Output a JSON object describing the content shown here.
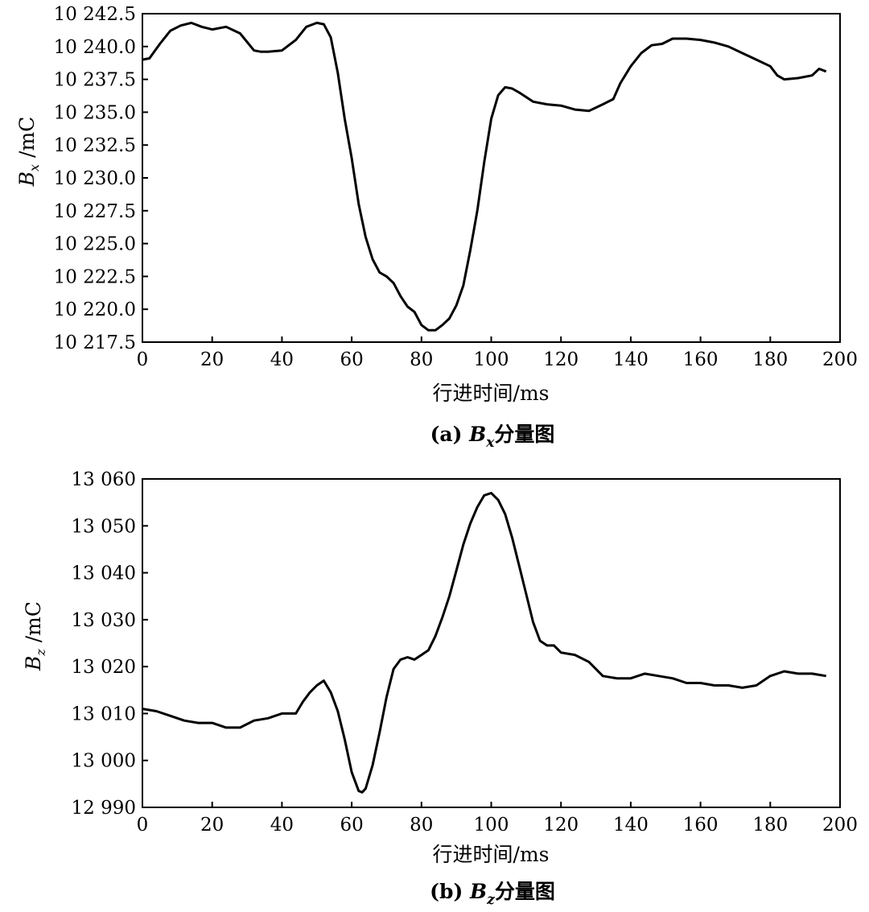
{
  "chart_data": [
    {
      "type": "line",
      "caption_prefix": "(a) ",
      "caption_var": "B",
      "caption_sub": "x",
      "caption_suffix": "分量图",
      "xlabel": "行进时间/ms",
      "ylabel_var": "B",
      "ylabel_sub": "x",
      "ylabel_unit": " /mC",
      "xlim": [
        0,
        200
      ],
      "ylim": [
        10217.5,
        10242.5
      ],
      "xticks": [
        0,
        20,
        40,
        60,
        80,
        100,
        120,
        140,
        160,
        180,
        200
      ],
      "yticks": [
        10217.5,
        10220.0,
        10222.5,
        10225.0,
        10227.5,
        10230.0,
        10232.5,
        10235.0,
        10237.5,
        10240.0,
        10242.5
      ],
      "xtick_labels": [
        "0",
        "20",
        "40",
        "60",
        "80",
        "100",
        "120",
        "140",
        "160",
        "180",
        "200"
      ],
      "ytick_labels": [
        "10 217.5",
        "10 220.0",
        "10 222.5",
        "10 225.0",
        "10 227.5",
        "10 230.0",
        "10 232.5",
        "10 235.0",
        "10 237.5",
        "10 240.0",
        "10 242.5"
      ],
      "grid": false,
      "line_color": "#000000",
      "series": [
        {
          "x": [
            0,
            2,
            5,
            8,
            11,
            14,
            17,
            20,
            24,
            28,
            32,
            34,
            36,
            40,
            44,
            47,
            50,
            52,
            54,
            56,
            58,
            60,
            62,
            64,
            66,
            68,
            70,
            72,
            74,
            76,
            78,
            80,
            82,
            84,
            86,
            88,
            90,
            92,
            94,
            96,
            98,
            100,
            102,
            104,
            106,
            108,
            112,
            116,
            120,
            124,
            128,
            132,
            135,
            137,
            140,
            143,
            146,
            149,
            152,
            156,
            160,
            164,
            168,
            172,
            176,
            180,
            182,
            184,
            188,
            192,
            194,
            196
          ],
          "y": [
            10239.0,
            10239.1,
            10240.2,
            10241.2,
            10241.6,
            10241.8,
            10241.5,
            10241.3,
            10241.5,
            10241.0,
            10239.7,
            10239.6,
            10239.6,
            10239.7,
            10240.5,
            10241.5,
            10241.8,
            10241.7,
            10240.7,
            10238.0,
            10234.5,
            10231.5,
            10228.0,
            10225.5,
            10223.8,
            10222.8,
            10222.5,
            10222.0,
            10221.0,
            10220.2,
            10219.8,
            10218.8,
            10218.4,
            10218.4,
            10218.8,
            10219.3,
            10220.3,
            10221.8,
            10224.5,
            10227.5,
            10231.2,
            10234.5,
            10236.3,
            10236.9,
            10236.8,
            10236.5,
            10235.8,
            10235.6,
            10235.5,
            10235.2,
            10235.1,
            10235.6,
            10236.0,
            10237.2,
            10238.5,
            10239.5,
            10240.1,
            10240.2,
            10240.6,
            10240.6,
            10240.5,
            10240.3,
            10240.0,
            10239.5,
            10239.0,
            10238.5,
            10237.8,
            10237.5,
            10237.6,
            10237.8,
            10238.3,
            10238.1
          ]
        }
      ]
    },
    {
      "type": "line",
      "caption_prefix": "(b) ",
      "caption_var": "B",
      "caption_sub": "z",
      "caption_suffix": "分量图",
      "xlabel": "行进时间/ms",
      "ylabel_var": "B",
      "ylabel_sub": "z",
      "ylabel_unit": " /mC",
      "xlim": [
        0,
        200
      ],
      "ylim": [
        12990,
        13060
      ],
      "xticks": [
        0,
        20,
        40,
        60,
        80,
        100,
        120,
        140,
        160,
        180,
        200
      ],
      "yticks": [
        12990,
        13000,
        13010,
        13020,
        13030,
        13040,
        13050,
        13060
      ],
      "xtick_labels": [
        "0",
        "20",
        "40",
        "60",
        "80",
        "100",
        "120",
        "140",
        "160",
        "180",
        "200"
      ],
      "ytick_labels": [
        "12 990",
        "13 000",
        "13 010",
        "13 020",
        "13 030",
        "13 040",
        "13 050",
        "13 060"
      ],
      "grid": false,
      "line_color": "#000000",
      "series": [
        {
          "x": [
            0,
            4,
            8,
            12,
            16,
            20,
            24,
            28,
            32,
            36,
            40,
            44,
            46,
            48,
            50,
            52,
            54,
            56,
            58,
            60,
            62,
            63,
            64,
            66,
            68,
            70,
            72,
            74,
            76,
            78,
            80,
            82,
            84,
            86,
            88,
            90,
            92,
            94,
            96,
            98,
            100,
            102,
            104,
            106,
            108,
            110,
            112,
            114,
            116,
            118,
            120,
            124,
            128,
            132,
            136,
            140,
            144,
            148,
            152,
            156,
            160,
            164,
            168,
            172,
            176,
            180,
            184,
            188,
            192,
            196
          ],
          "y": [
            13011.0,
            13010.5,
            13009.5,
            13008.5,
            13008.0,
            13008.0,
            13007.0,
            13007.0,
            13008.5,
            13009.0,
            13010.0,
            13010.0,
            13012.5,
            13014.5,
            13016.0,
            13017.0,
            13014.5,
            13010.5,
            13004.5,
            12997.5,
            12993.5,
            12993.2,
            12994.0,
            12999.0,
            13006.0,
            13013.5,
            13019.5,
            13021.5,
            13022.0,
            13021.5,
            13022.5,
            13023.5,
            13026.5,
            13030.5,
            13035.0,
            13040.5,
            13046.0,
            13050.5,
            13054.0,
            13056.5,
            13057.0,
            13055.5,
            13052.5,
            13047.5,
            13041.5,
            13035.5,
            13029.5,
            13025.5,
            13024.5,
            13024.5,
            13023.0,
            13022.5,
            13021.0,
            13018.0,
            13017.5,
            13017.5,
            13018.5,
            13018.0,
            13017.5,
            13016.5,
            13016.5,
            13016.0,
            13016.0,
            13015.5,
            13016.0,
            13018.0,
            13019.0,
            13018.5,
            13018.5,
            13018.0
          ]
        }
      ]
    }
  ]
}
